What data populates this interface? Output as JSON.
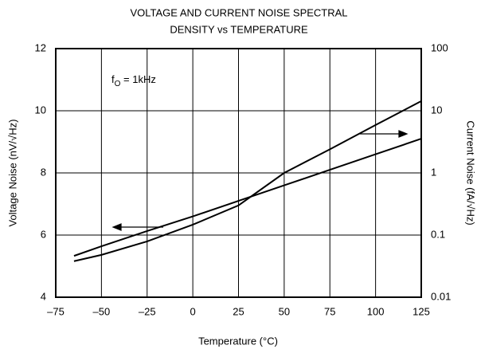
{
  "chart_data": {
    "type": "line",
    "title": [
      "VOLTAGE AND CURRENT NOISE SPECTRAL",
      "DENSITY vs TEMPERATURE"
    ],
    "x_label": "Temperature (°C)",
    "y_label": "Voltage Noise (nV/√Hz)",
    "y2_label": "Current Noise (fA/√Hz)",
    "annotation": {
      "main": "f",
      "subscript": "O",
      "tail": " = 1kHz"
    },
    "x": [
      -65,
      -50,
      -25,
      0,
      25,
      50,
      75,
      100,
      125
    ],
    "series": [
      {
        "name": "Voltage Noise",
        "color": "#000000",
        "axis": "y",
        "values": [
          5.33,
          5.64,
          6.13,
          6.6,
          7.1,
          7.6,
          8.1,
          8.6,
          9.1
        ]
      },
      {
        "name": "Current Noise",
        "color": "#000000",
        "axis": "y2",
        "values": [
          0.038,
          0.048,
          0.079,
          0.147,
          0.3,
          1.0,
          2.4,
          5.9,
          14.3
        ]
      }
    ],
    "xlim": [
      -75,
      125
    ],
    "xticks": [
      {
        "value": -75,
        "label": "–75"
      },
      {
        "value": -50,
        "label": "–50"
      },
      {
        "value": -25,
        "label": "–25"
      },
      0,
      25,
      50,
      75,
      100,
      125
    ],
    "ylim": [
      4,
      12
    ],
    "yticks": [
      4,
      6,
      8,
      10,
      12
    ],
    "y2lim": [
      0.01,
      100
    ],
    "y2ticks": [
      0.01,
      0.1,
      1,
      10,
      100
    ],
    "y2_log": true,
    "grid": true
  }
}
